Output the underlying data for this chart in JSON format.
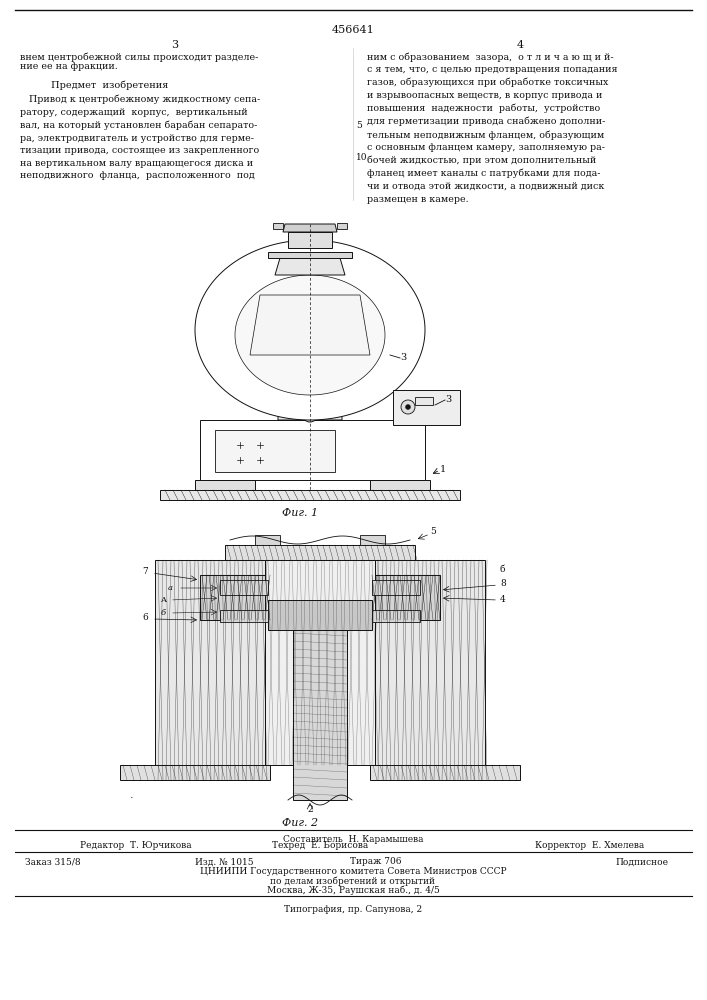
{
  "page_width": 7.07,
  "page_height": 10.0,
  "bg_color": "#ffffff",
  "patent_number": "456641",
  "page_left": "3",
  "page_right": "4",
  "text_left_line1": "внем центробежной силы происходит разделе-",
  "text_left_line2": "ние ее на фракции.",
  "text_left_heading": "Предмет  изобретения",
  "text_left_body": "   Привод к центробежному жидкостному сепа-\nратору, содержащий  корпус,  вертикальный\nвал, на который установлен барабан сепарато-\nра, электродвигатель и устройство для герме-\nтизации привода, состоящее из закрепленного\nна вертикальном валу вращающегося диска и\nнеподвижного  фланца,  расположенного  под",
  "text_right_body": "ним с образованием  зазора,  о т л и ч а ю щ и й-\nс я тем, что, с целью предотвращения попадания\nгазов, образующихся при обработке токсичных\nи взрывоопасных веществ, в корпус привода и\nповышения  надежности  работы,  устройство\nдля герметизации привода снабжено дополни-\nтельным неподвижным фланцем, образующим\nс основным фланцем камеру, заполняемую ра-\nбочей жидкостью, при этом дополнительный\nфланец имеет каналы с патрубками для пода-\nчи и отвода этой жидкости, а подвижный диск\nразмещен в камере.",
  "line_num_5": "5",
  "line_num_10": "10",
  "fig1_label": "Фиг. 1",
  "fig2_label": "Фиг. 2",
  "footer_composer": "Составитель  Н. Карамышева",
  "footer_editor": "Редактор  Т. Юрчикова",
  "footer_techred": "Техред  Е. Борисова",
  "footer_corrector": "Корректор  Е. Хмелева",
  "footer_order": "Заказ 315/8",
  "footer_izd": "Изд. № 1015",
  "footer_tirazh": "Тираж 706",
  "footer_podpisnoe": "Подписное",
  "footer_org": "ЦНИИПИ Государственного комитета Совета Министров СССР",
  "footer_delo": "по делам изобретений и открытий",
  "footer_addr": "Москва, Ж-35, Раушская наб., д. 4/5",
  "footer_print": "Типография, пр. Сапунова, 2",
  "lc": "#111111",
  "lw": 0.7,
  "hatch_color": "#555555",
  "fill_light": "#f0f0f0",
  "fill_white": "#ffffff"
}
